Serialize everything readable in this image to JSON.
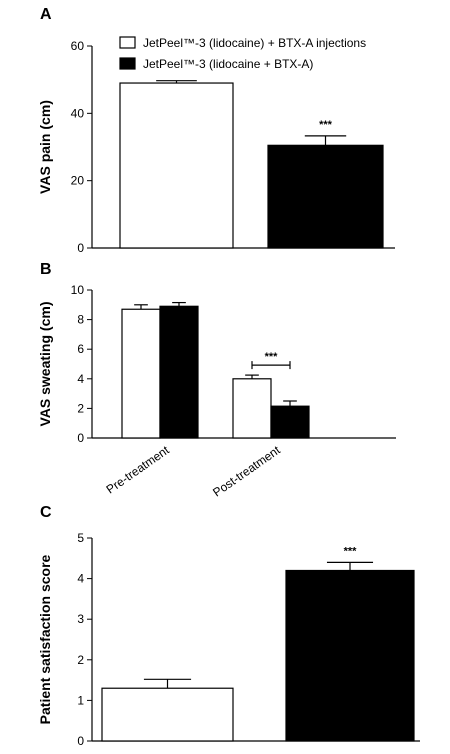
{
  "legend": {
    "items": [
      {
        "label": "JetPeel™-3 (lidocaine) + BTX-A injections",
        "fill": "#ffffff"
      },
      {
        "label": "JetPeel™-3 (lidocaine + BTX-A)",
        "fill": "#000000"
      }
    ]
  },
  "colors": {
    "white_bar": "#ffffff",
    "black_bar": "#000000",
    "axis": "#000000"
  },
  "chart_data": [
    {
      "panel": "A",
      "type": "bar",
      "ylabel": "VAS pain (cm)",
      "ylim": [
        0,
        60
      ],
      "yticks": [
        0,
        20,
        40,
        60
      ],
      "series": [
        {
          "name": "JetPeel™-3 (lidocaine) + BTX-A injections",
          "values": [
            49
          ],
          "errors": [
            0.7
          ]
        },
        {
          "name": "JetPeel™-3 (lidocaine + BTX-A)",
          "values": [
            30.5
          ],
          "errors": [
            2.8
          ]
        }
      ],
      "annotations": [
        {
          "text": "***",
          "target": "series-2"
        }
      ]
    },
    {
      "panel": "B",
      "type": "bar",
      "ylabel": "VAS sweating (cm)",
      "ylim": [
        0,
        10
      ],
      "yticks": [
        0,
        2,
        4,
        6,
        8,
        10
      ],
      "categories": [
        "Pre-treatment",
        "Post-treatment"
      ],
      "series": [
        {
          "name": "JetPeel™-3 (lidocaine) + BTX-A injections",
          "values": [
            8.7,
            4.0
          ],
          "errors": [
            0.3,
            0.25
          ]
        },
        {
          "name": "JetPeel™-3 (lidocaine + BTX-A)",
          "values": [
            8.9,
            2.15
          ],
          "errors": [
            0.25,
            0.35
          ]
        }
      ],
      "annotations": [
        {
          "text": "***",
          "target": "Post-treatment"
        }
      ]
    },
    {
      "panel": "C",
      "type": "bar",
      "ylabel": "Patient satisfaction score",
      "ylim": [
        0,
        5
      ],
      "yticks": [
        0,
        1,
        2,
        3,
        4,
        5
      ],
      "series": [
        {
          "name": "JetPeel™-3 (lidocaine) + BTX-A injections",
          "values": [
            1.3
          ],
          "errors": [
            0.22
          ]
        },
        {
          "name": "JetPeel™-3 (lidocaine + BTX-A)",
          "values": [
            4.2
          ],
          "errors": [
            0.2
          ]
        }
      ],
      "annotations": [
        {
          "text": "***",
          "target": "series-2"
        }
      ]
    }
  ]
}
